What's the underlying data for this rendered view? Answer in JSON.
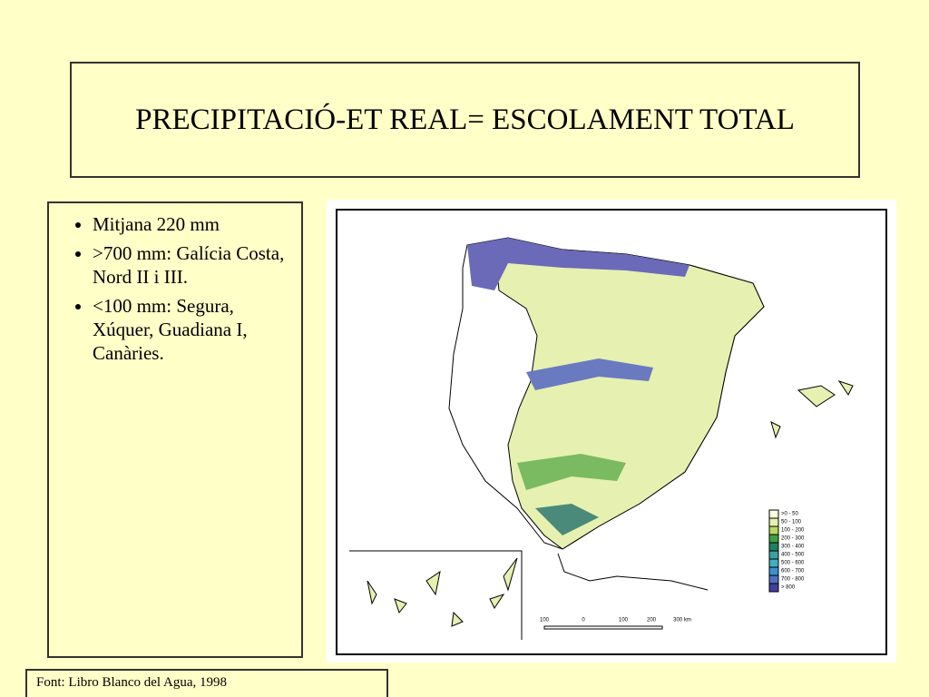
{
  "title": "PRECIPITACIÓ-ET REAL= ESCOLAMENT TOTAL",
  "bullets": [
    "Mitjana 220 mm",
    ">700 mm: Galícia Costa, Nord II i III.",
    "<100 mm: Segura, Xúquer, Guadiana I, Canàries."
  ],
  "map": {
    "legend": [
      ">0 - 50",
      "50 - 100",
      "100 - 200",
      "200 - 300",
      "300 - 400",
      "400 - 500",
      "500 - 600",
      "600 - 700",
      "700 - 800",
      "> 800"
    ],
    "scale": [
      "100",
      "0",
      "100",
      "200",
      "300 km"
    ]
  },
  "source": "Font: Libro Blanco del Agua, 1998"
}
